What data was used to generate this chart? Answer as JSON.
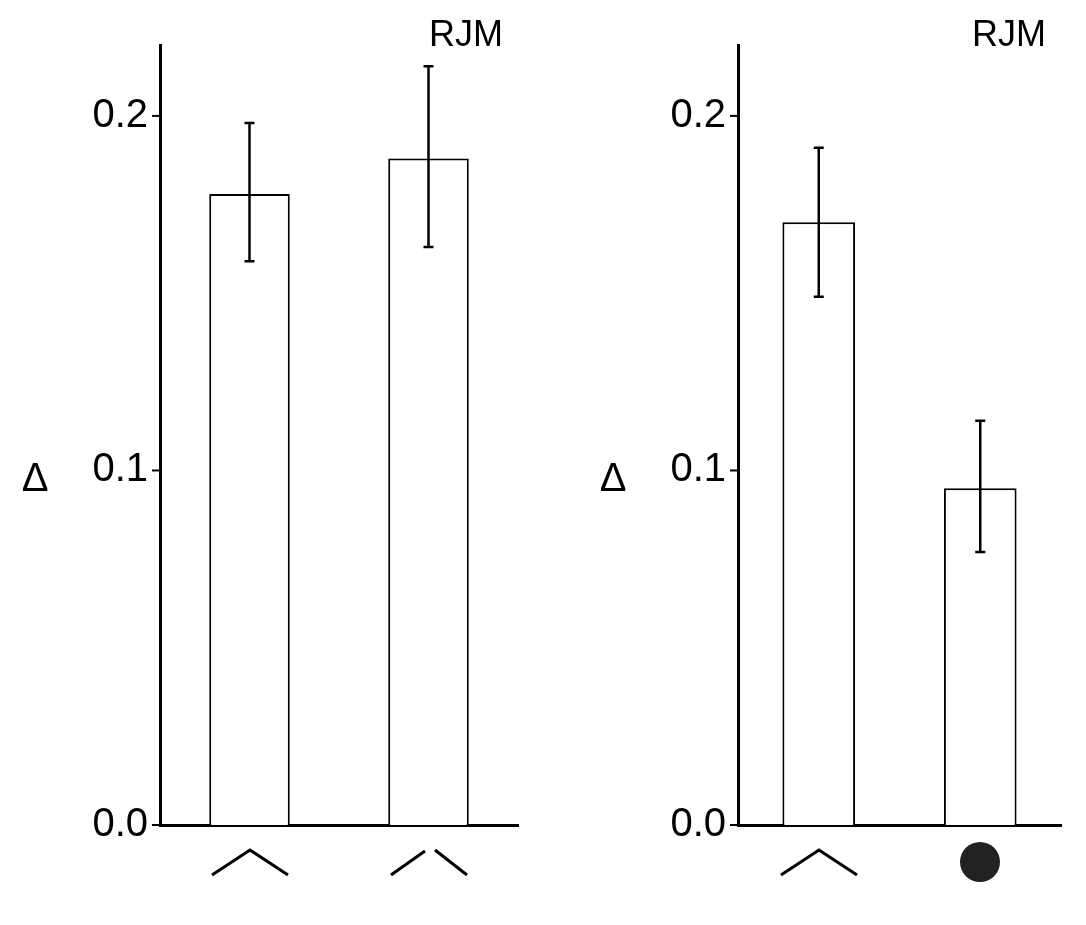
{
  "chart_data": [
    {
      "type": "bar",
      "categories": [
        null,
        null
      ],
      "values": [
        0.178,
        0.188
      ],
      "errors": [
        [
          0.159,
          0.198
        ],
        [
          0.163,
          0.214
        ]
      ],
      "color": "#ffffff",
      "ylabel": "Δ",
      "annotations": [
        "RJM"
      ],
      "ylim": [
        0,
        0.22
      ],
      "yticks": [
        {
          "value": 0,
          "label": "0.0"
        },
        {
          "value": 0.1,
          "label": "0.1"
        },
        {
          "value": 0.2,
          "label": "0.2"
        }
      ],
      "grid": false,
      "legend": false
    },
    {
      "type": "bar",
      "categories": [
        null,
        null
      ],
      "values": [
        0.17,
        0.095
      ],
      "errors": [
        [
          0.149,
          0.191
        ],
        [
          0.077,
          0.114
        ]
      ],
      "color": "#ffffff",
      "ylabel": "Δ",
      "annotations": [
        "RJM"
      ],
      "ylim": [
        0,
        0.22
      ],
      "yticks": [
        {
          "value": 0,
          "label": "0.0"
        },
        {
          "value": 0.1,
          "label": "0.1"
        },
        {
          "value": 0.2,
          "label": "0.2"
        }
      ],
      "grid": false,
      "legend": false
    }
  ]
}
